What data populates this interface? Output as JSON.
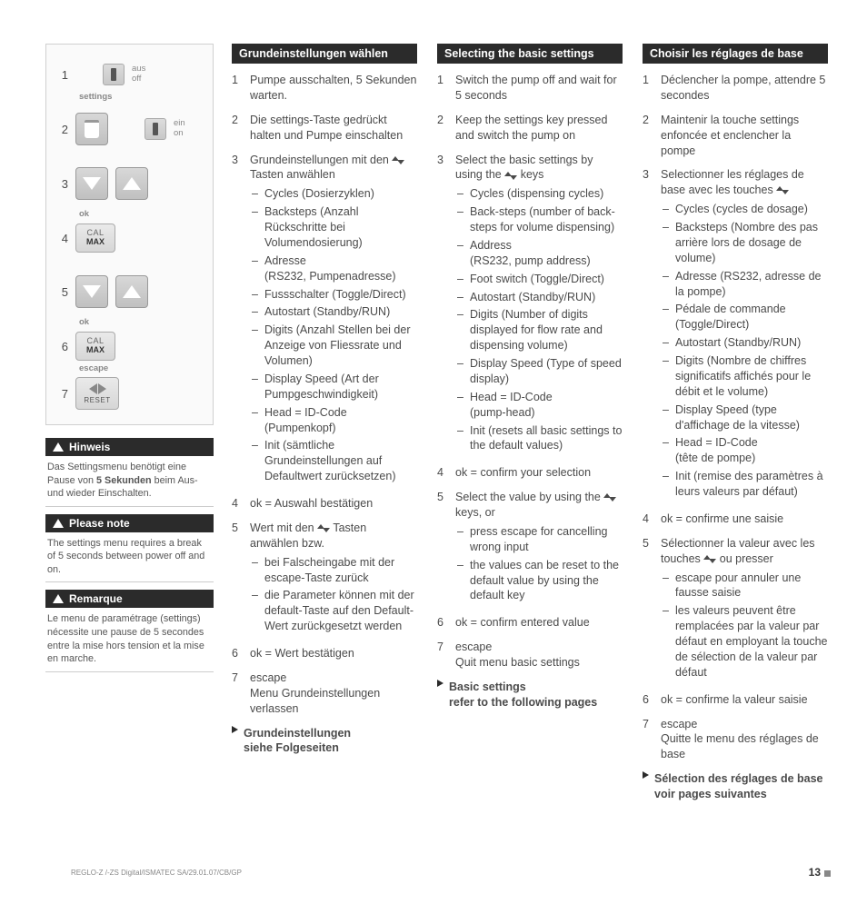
{
  "colors": {
    "heading_bg": "#2b2b2b",
    "heading_fg": "#ffffff",
    "body_text": "#4a4a4a",
    "muted": "#888888",
    "box_border": "#d0d0d0",
    "box_bg": "#fafafa"
  },
  "sidebar": {
    "diagram": {
      "steps": [
        "1",
        "2",
        "3",
        "4",
        "5",
        "6",
        "7"
      ],
      "aus": "aus",
      "off": "off",
      "settings": "settings",
      "ein": "ein",
      "on": "on",
      "ok1": "ok",
      "ok2": "ok",
      "escape": "escape",
      "cal": "CAL",
      "max": "MAX",
      "reset": "RESET"
    },
    "notes": [
      {
        "title": "Hinweis",
        "body_pre": "Das Settingsmenu benötigt eine Pause von ",
        "body_bold": "5 Sekunden",
        "body_post": " beim Aus- und wieder Einschalten."
      },
      {
        "title": "Please note",
        "body_pre": "The settings menu requires a break of 5 seconds between power off and on.",
        "body_bold": "",
        "body_post": ""
      },
      {
        "title": "Remarque",
        "body_pre": "Le menu de paramétrage (settings) nécessite une pause de 5 secondes entre la mise hors tension et la mise en marche.",
        "body_bold": "",
        "body_post": ""
      }
    ]
  },
  "columns": [
    {
      "heading": "Grundeinstellungen wählen",
      "steps": [
        {
          "n": "1",
          "t": "Pumpe ausschalten, 5 Sekunden warten."
        },
        {
          "n": "2",
          "t": "Die settings-Taste gedrückt halten und Pumpe einschalten"
        },
        {
          "n": "3",
          "pre": "Grundeinstellungen mit den ",
          "post": " Tasten anwählen",
          "arrows": true,
          "sub": [
            "Cycles (Dosierzyklen)",
            "Backsteps (Anzahl Rückschritte bei Volumendosierung)",
            "Adresse\n(RS232, Pumpenadresse)",
            "Fussschalter (Toggle/Direct)",
            "Autostart (Standby/RUN)",
            "Digits (Anzahl Stellen bei der Anzeige von Fliessrate und Volumen)",
            "Display Speed (Art der Pumpgeschwindigkeit)",
            "Head = ID-Code (Pumpenkopf)",
            "Init (sämtliche Grundeinstellungen auf Defaultwert zurücksetzen)"
          ]
        },
        {
          "n": "4",
          "t": "ok = Auswahl bestätigen"
        },
        {
          "n": "5",
          "pre": "Wert mit den ",
          "post": " Tasten anwählen bzw.",
          "arrows": true,
          "sub": [
            "bei Falscheingabe mit der escape-Taste zurück",
            "die Parameter können mit der default-Taste auf den Default-Wert zurückgesetzt werden"
          ]
        },
        {
          "n": "6",
          "t": "ok = Wert bestätigen"
        },
        {
          "n": "7",
          "t": "escape\nMenu Grundeinstellungen verlassen"
        }
      ],
      "continue": "Grundeinstellungen\nsiehe Folgeseiten"
    },
    {
      "heading": "Selecting the basic settings",
      "steps": [
        {
          "n": "1",
          "t": "Switch the pump off and wait for 5 seconds"
        },
        {
          "n": "2",
          "t": "Keep the settings key pressed and switch the pump on"
        },
        {
          "n": "3",
          "pre": "Select the basic settings by using the ",
          "post": " keys",
          "arrows": true,
          "sub": [
            "Cycles (dispensing cycles)",
            "Back-steps (number of back-steps for volume dispensing)",
            "Address\n(RS232, pump address)",
            "Foot switch (Toggle/Direct)",
            "Autostart (Standby/RUN)",
            "Digits (Number of digits displayed for flow rate and dispensing volume)",
            "Display Speed (Type of speed display)",
            "Head = ID-Code\n(pump-head)",
            "Init (resets all basic settings to the default values)"
          ]
        },
        {
          "n": "4",
          "t": "ok = confirm your selection"
        },
        {
          "n": "5",
          "pre": "Select the value by using the ",
          "post": " keys, or",
          "arrows": true,
          "sub": [
            "press escape for cancelling wrong input",
            "the values can be reset to the default value by using the default key"
          ]
        },
        {
          "n": "6",
          "t": "ok = confirm entered value"
        },
        {
          "n": "7",
          "t": "escape\nQuit menu basic settings"
        }
      ],
      "continue": "Basic settings\nrefer to the following pages"
    },
    {
      "heading": "Choisir les réglages de base",
      "steps": [
        {
          "n": "1",
          "t": "Déclencher la pompe, attendre 5 secondes"
        },
        {
          "n": "2",
          "t": "Maintenir la touche settings enfoncée et enclencher la pompe"
        },
        {
          "n": "3",
          "pre": "Selectionner les réglages de base avec les touches ",
          "post": "",
          "arrows": true,
          "sub": [
            "Cycles (cycles de dosage)",
            "Backsteps (Nombre des pas arrière lors de dosage de volume)",
            "Adresse (RS232, adresse de la pompe)",
            "Pédale de commande (Toggle/Direct)",
            "Autostart (Standby/RUN)",
            "Digits (Nombre de chiffres significatifs affichés pour le débit et le volume)",
            "Display Speed (type d'affichage de la vitesse)",
            "Head = ID-Code\n(tête de pompe)",
            "Init (remise des paramètres à leurs valeurs par défaut)"
          ]
        },
        {
          "n": "4",
          "t": "ok = confirme une saisie"
        },
        {
          "n": "5",
          "pre": "Sélectionner la valeur avec les touches ",
          "post": " ou presser",
          "arrows": true,
          "sub": [
            "escape pour annuler une fausse saisie",
            "les valeurs peuvent être remplacées par la valeur par défaut en employant la touche de sélection de la valeur par défaut"
          ]
        },
        {
          "n": "6",
          "t": "ok = confirme la valeur saisie"
        },
        {
          "n": "7",
          "t": "escape\nQuitte le menu des réglages de base"
        }
      ],
      "continue": "Sélection des réglages de base voir pages suivantes"
    }
  ],
  "footer": {
    "ref": "REGLO-Z /-ZS Digital/ISMATEC SA/29.01.07/CB/GP",
    "page": "13"
  }
}
